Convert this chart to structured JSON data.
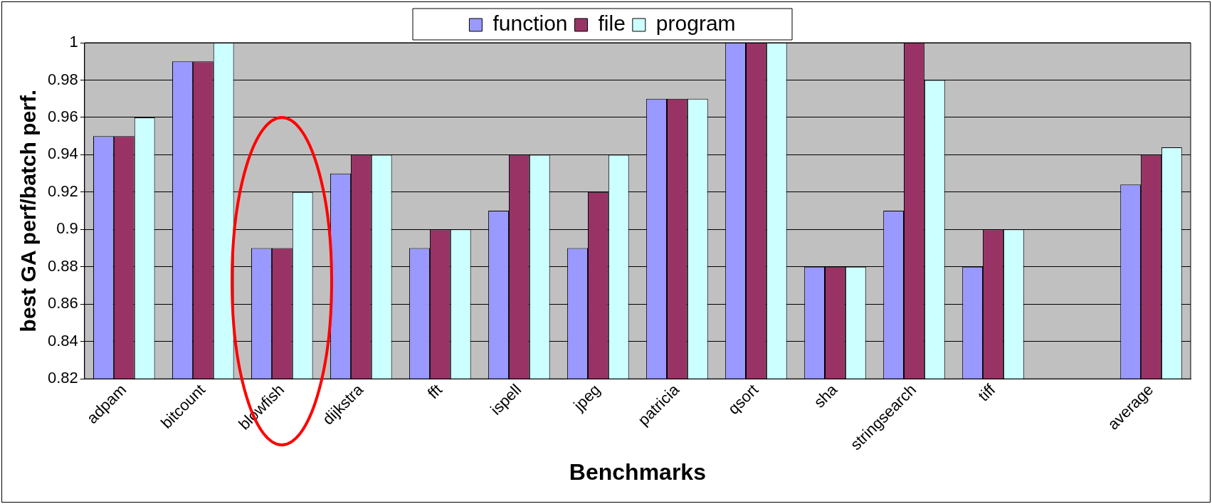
{
  "chart_data": {
    "type": "bar",
    "xlabel": "Benchmarks",
    "ylabel": "best GA perf/batch perf.",
    "categories": [
      "adpam",
      "bitcount",
      "blowfish",
      "dijkstra",
      "fft",
      "ispell",
      "jpeg",
      "patricia",
      "qsort",
      "sha",
      "stringsearch",
      "tiff",
      null,
      "average"
    ],
    "series": [
      {
        "name": "function",
        "color": "#9999ff",
        "values": [
          0.95,
          0.99,
          0.89,
          0.93,
          0.89,
          0.91,
          0.89,
          0.97,
          1,
          0.88,
          0.91,
          0.88,
          null,
          0.924
        ]
      },
      {
        "name": "file",
        "color": "#993366",
        "values": [
          0.95,
          0.99,
          0.89,
          0.94,
          0.9,
          0.94,
          0.92,
          0.97,
          1,
          0.88,
          1,
          0.9,
          null,
          0.94
        ]
      },
      {
        "name": "program",
        "color": "#ccffff",
        "values": [
          0.96,
          1,
          0.92,
          0.94,
          0.9,
          0.94,
          0.94,
          0.97,
          1,
          0.88,
          0.98,
          0.9,
          null,
          0.944
        ]
      }
    ],
    "ylim": [
      0.82,
      1
    ],
    "yticks": [
      0.82,
      0.84,
      0.86,
      0.88,
      0.9,
      0.92,
      0.94,
      0.96,
      0.98,
      1
    ],
    "grid": "y",
    "legend": "top"
  }
}
